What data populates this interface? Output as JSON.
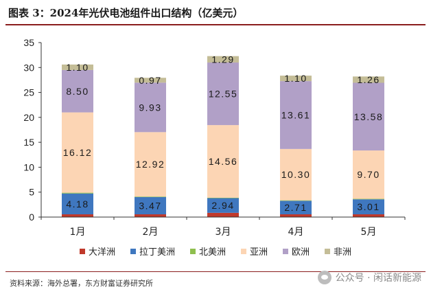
{
  "title": "图表 3：2024年光伏电池组件出口结构（亿美元）",
  "chart_data": {
    "type": "bar",
    "stacked": true,
    "categories": [
      "1月",
      "2月",
      "3月",
      "4月",
      "5月"
    ],
    "ylim": [
      0,
      35
    ],
    "yticks": [
      0,
      5,
      10,
      15,
      20,
      25,
      30,
      35
    ],
    "series": [
      {
        "name": "大洋洲",
        "color": "#c0392b",
        "values": [
          0.55,
          0.55,
          0.85,
          0.55,
          0.55
        ],
        "labels": [
          "",
          "",
          "",
          "",
          ""
        ]
      },
      {
        "name": "拉丁美洲",
        "color": "#3f77bf",
        "values": [
          4.18,
          3.47,
          2.94,
          2.71,
          3.01
        ],
        "labels": [
          "4.18",
          "3.47",
          "2.94",
          "2.71",
          "3.01"
        ]
      },
      {
        "name": "北美洲",
        "color": "#8fbf4f",
        "values": [
          0.15,
          0.1,
          0.1,
          0.1,
          0.1
        ],
        "labels": [
          "",
          "",
          "",
          "",
          ""
        ]
      },
      {
        "name": "亚洲",
        "color": "#fcd5b4",
        "values": [
          16.12,
          12.92,
          14.56,
          10.3,
          9.7
        ],
        "labels": [
          "16.12",
          "12.92",
          "14.56",
          "10.30",
          "9.70"
        ]
      },
      {
        "name": "欧洲",
        "color": "#b1a0c7",
        "values": [
          8.5,
          9.93,
          12.55,
          13.61,
          13.58
        ],
        "labels": [
          "8.50",
          "9.93",
          "12.55",
          "13.61",
          "13.58"
        ]
      },
      {
        "name": "非洲",
        "color": "#c4bd97",
        "values": [
          1.1,
          0.97,
          1.29,
          1.1,
          1.26
        ],
        "labels": [
          "1.10",
          "0.97",
          "1.29",
          "1.10",
          "1.26"
        ]
      }
    ]
  },
  "source": "资料来源：海外总署，东方财富证券研究所",
  "watermark": "公众号 · 闲话新能源"
}
